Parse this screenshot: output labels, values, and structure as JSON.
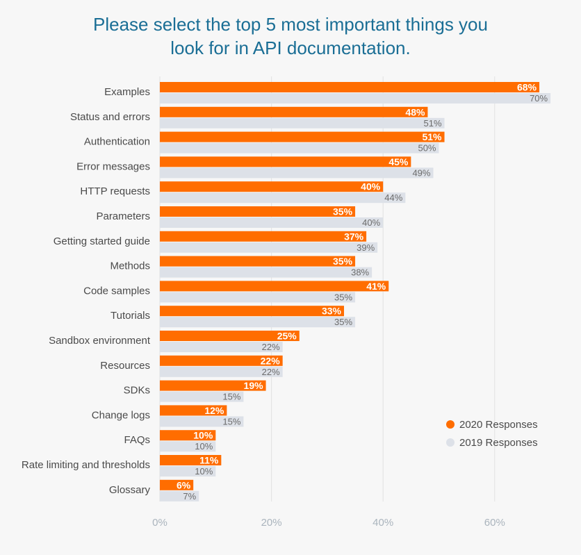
{
  "title": {
    "line1": "Please select the top 5 most important things you",
    "line2": "look for in API documentation."
  },
  "colors": {
    "series_2020": "#ff6d00",
    "series_2019": "#dde1e8",
    "title": "#1a6e95",
    "grid": "#e2e2e2"
  },
  "chart_data": {
    "type": "bar",
    "orientation": "horizontal",
    "title": "Please select the top 5 most important things you look for in API documentation.",
    "categories": [
      "Examples",
      "Status and errors",
      "Authentication",
      "Error messages",
      "HTTP requests",
      "Parameters",
      "Getting started guide",
      "Methods",
      "Code samples",
      "Tutorials",
      "Sandbox environment",
      "Resources",
      "SDKs",
      "Change logs",
      "FAQs",
      "Rate limiting and thresholds",
      "Glossary"
    ],
    "series": [
      {
        "name": "2020 Responses",
        "values": [
          68,
          48,
          51,
          45,
          40,
          35,
          37,
          35,
          41,
          33,
          25,
          22,
          19,
          12,
          10,
          11,
          6
        ],
        "labels": [
          "68%",
          "48%",
          "51%",
          "45%",
          "40%",
          "35%",
          "37%",
          "35%",
          "41%",
          "33%",
          "25%",
          "22%",
          "19%",
          "12%",
          "10%",
          "11%",
          "6%"
        ]
      },
      {
        "name": "2019 Responses",
        "values": [
          70,
          51,
          50,
          49,
          44,
          40,
          39,
          38,
          35,
          35,
          22,
          22,
          15,
          15,
          10,
          10,
          7
        ],
        "labels": [
          "70%",
          "51%",
          "50%",
          "49%",
          "44%",
          "40%",
          "39%",
          "38%",
          "35%",
          "35%",
          "22%",
          "22%",
          "15%",
          "15%",
          "10%",
          "10%",
          "7%"
        ]
      }
    ],
    "xlim": [
      0,
      70
    ],
    "xticks": [
      0,
      20,
      40,
      60
    ],
    "xtick_labels": [
      "0%",
      "20%",
      "40%",
      "60%"
    ],
    "grid": true,
    "legend": {
      "position": "bottom-right",
      "entries": [
        "2020 Responses",
        "2019 Responses"
      ]
    }
  }
}
